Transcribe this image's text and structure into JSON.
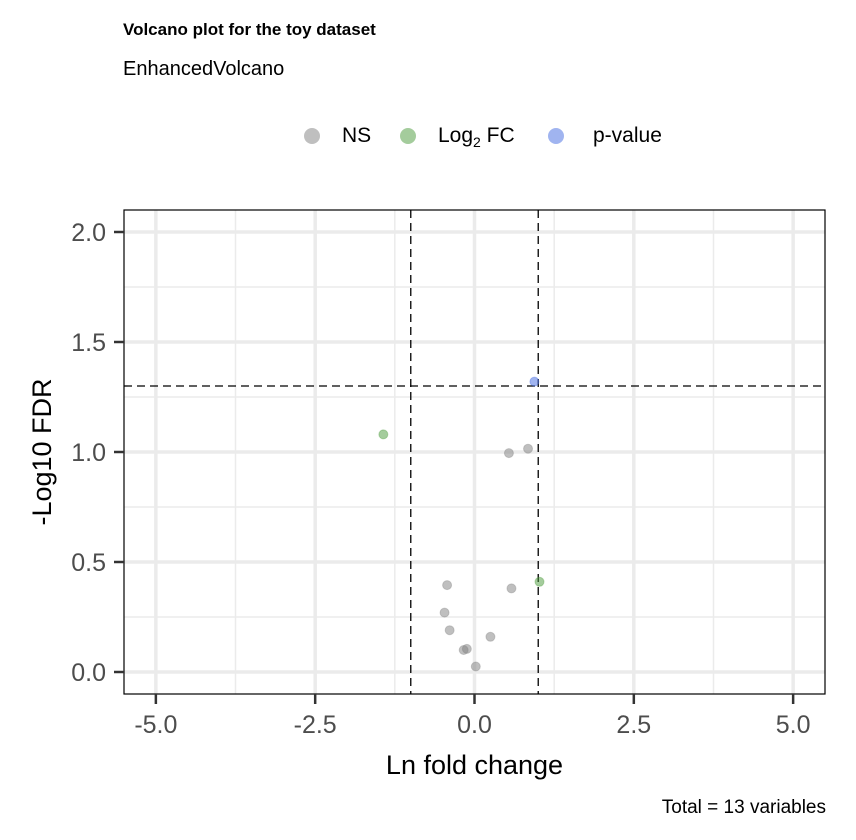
{
  "chart_data": {
    "type": "scatter",
    "title": "Volcano plot for the toy dataset",
    "subtitle": "EnhancedVolcano",
    "xlabel": "Ln fold change",
    "ylabel": "-Log10 FDR",
    "caption": "Total = 13 variables",
    "xlim": [
      -5.5,
      5.5
    ],
    "ylim": [
      -0.1,
      2.1
    ],
    "xticks": [
      -5.0,
      -2.5,
      0.0,
      2.5,
      5.0
    ],
    "xtick_labels": [
      "-5.0",
      "-2.5",
      "0.0",
      "2.5",
      "5.0"
    ],
    "yticks": [
      0.0,
      0.5,
      1.0,
      1.5,
      2.0
    ],
    "ytick_labels": [
      "0.0",
      "0.5",
      "1.0",
      "1.5",
      "2.0"
    ],
    "grid": true,
    "legend_position": "top",
    "cutoff_lines": {
      "x": [
        -1,
        1
      ],
      "y": 1.3
    },
    "legend": [
      {
        "key": "NS",
        "label": "NS",
        "color": "#808080"
      },
      {
        "key": "FC",
        "label_main": "Log",
        "label_sub": "2",
        "label_tail": " FC",
        "color": "#4a9a3a"
      },
      {
        "key": "P",
        "label": "p-value",
        "color": "#4169e1"
      }
    ],
    "series": [
      {
        "key": "NS",
        "color": "#808080",
        "points": [
          [
            0.54,
            0.995
          ],
          [
            0.84,
            1.015
          ],
          [
            -0.43,
            0.395
          ],
          [
            0.58,
            0.38
          ],
          [
            -0.47,
            0.27
          ],
          [
            -0.39,
            0.19
          ],
          [
            0.25,
            0.16
          ],
          [
            -0.17,
            0.1
          ],
          [
            -0.12,
            0.105
          ],
          [
            0.02,
            0.025
          ]
        ]
      },
      {
        "key": "FC",
        "color": "#4a9a3a",
        "points": [
          [
            -1.43,
            1.08
          ],
          [
            1.02,
            0.41
          ]
        ]
      },
      {
        "key": "P",
        "color": "#4169e1",
        "points": [
          [
            0.94,
            1.32
          ]
        ]
      }
    ]
  }
}
